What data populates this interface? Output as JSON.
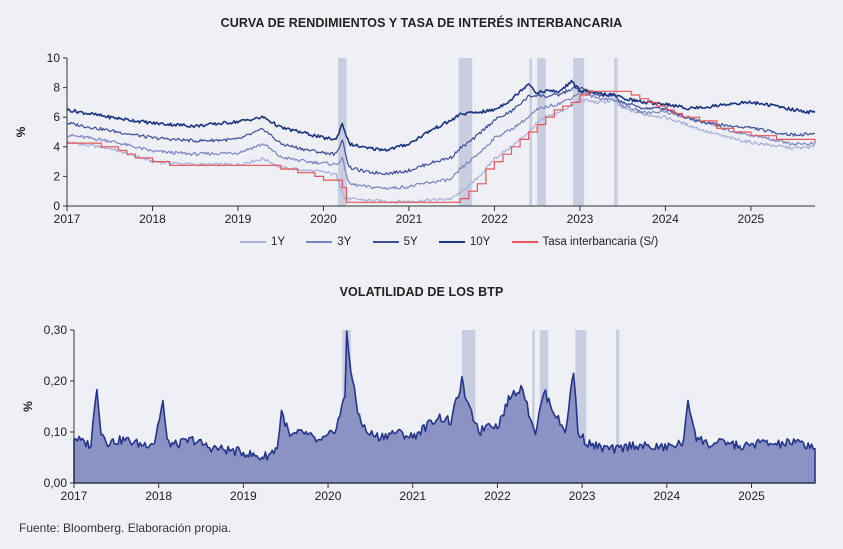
{
  "source": "Fuente: Bloomberg. Elaboración propia.",
  "colors": {
    "band": "#c9cde0",
    "y1": "#a9aed8",
    "y3": "#7b84bf",
    "y5": "#3d4f9c",
    "y10": "#1c3580",
    "rate": "#e8555a",
    "vol_line": "#24358a",
    "vol_fill": "#8a93c4",
    "axis": "#333333"
  },
  "chart_data": [
    {
      "type": "line",
      "title": "CURVA DE RENDIMIENTOS Y TASA DE INTERÉS INTERBANCARIA",
      "ylabel": "%",
      "xlim": [
        2017.0,
        2025.75
      ],
      "ylim": [
        0,
        10
      ],
      "y_ticks": [
        "0",
        "2",
        "4",
        "6",
        "8",
        "10"
      ],
      "y_tick_values": [
        0,
        2,
        4,
        6,
        8,
        10
      ],
      "x_ticks": [
        "2017",
        "2018",
        "2019",
        "2020",
        "2021",
        "2022",
        "2023",
        "2024",
        "2025"
      ],
      "x_tick_values": [
        2017,
        2018,
        2019,
        2020,
        2021,
        2022,
        2023,
        2024,
        2025
      ],
      "shaded_periods": [
        [
          2020.17,
          2020.27
        ],
        [
          2021.58,
          2021.74
        ],
        [
          2022.41,
          2022.44
        ],
        [
          2022.5,
          2022.6
        ],
        [
          2022.92,
          2023.05
        ],
        [
          2023.4,
          2023.44
        ]
      ],
      "series": [
        {
          "name": "1Y",
          "color_key": "y1",
          "x": [
            2017.0,
            2017.5,
            2018.0,
            2018.5,
            2019.0,
            2019.3,
            2019.5,
            2019.8,
            2020.0,
            2020.15,
            2020.25,
            2020.5,
            2020.75,
            2021.0,
            2021.25,
            2021.5,
            2021.6,
            2021.75,
            2021.9,
            2022.0,
            2022.2,
            2022.4,
            2022.5,
            2022.6,
            2022.75,
            2022.9,
            2023.0,
            2023.2,
            2023.4,
            2023.5,
            2023.75,
            2024.0,
            2024.25,
            2024.5,
            2024.75,
            2025.0,
            2025.25,
            2025.5,
            2025.75
          ],
          "y": [
            4.3,
            3.9,
            3.0,
            2.8,
            2.8,
            3.2,
            2.6,
            2.4,
            2.3,
            2.1,
            0.5,
            0.4,
            0.3,
            0.3,
            0.4,
            0.5,
            0.9,
            1.6,
            2.5,
            3.2,
            4.0,
            5.0,
            5.6,
            6.0,
            6.3,
            6.8,
            7.2,
            7.0,
            7.1,
            6.6,
            6.2,
            6.0,
            5.5,
            5.0,
            4.6,
            4.3,
            4.1,
            3.9,
            4.0
          ]
        },
        {
          "name": "3Y",
          "color_key": "y3",
          "x": [
            2017.0,
            2017.5,
            2018.0,
            2018.5,
            2019.0,
            2019.3,
            2019.5,
            2019.8,
            2020.0,
            2020.15,
            2020.22,
            2020.3,
            2020.5,
            2020.75,
            2021.0,
            2021.25,
            2021.5,
            2021.6,
            2021.75,
            2021.9,
            2022.0,
            2022.2,
            2022.4,
            2022.5,
            2022.6,
            2022.75,
            2022.9,
            2023.0,
            2023.2,
            2023.4,
            2023.5,
            2023.75,
            2024.0,
            2024.25,
            2024.5,
            2024.75,
            2025.0,
            2025.25,
            2025.5,
            2025.75
          ],
          "y": [
            4.8,
            4.4,
            3.7,
            3.5,
            3.6,
            4.2,
            3.3,
            3.0,
            2.9,
            2.8,
            3.2,
            1.5,
            1.3,
            1.2,
            1.3,
            1.6,
            1.8,
            2.5,
            3.2,
            4.0,
            4.6,
            5.2,
            6.0,
            6.5,
            6.7,
            6.9,
            7.3,
            7.7,
            7.3,
            7.2,
            6.8,
            6.3,
            6.4,
            5.9,
            5.6,
            5.1,
            4.8,
            4.5,
            4.2,
            4.2
          ]
        },
        {
          "name": "5Y",
          "color_key": "y5",
          "x": [
            2017.0,
            2017.5,
            2018.0,
            2018.5,
            2019.0,
            2019.3,
            2019.5,
            2019.8,
            2020.0,
            2020.15,
            2020.22,
            2020.3,
            2020.5,
            2020.75,
            2021.0,
            2021.25,
            2021.5,
            2021.6,
            2021.75,
            2021.9,
            2022.0,
            2022.2,
            2022.4,
            2022.5,
            2022.6,
            2022.75,
            2022.9,
            2023.0,
            2023.2,
            2023.4,
            2023.5,
            2023.75,
            2024.0,
            2024.25,
            2024.5,
            2024.75,
            2025.0,
            2025.25,
            2025.5,
            2025.75
          ],
          "y": [
            5.6,
            5.1,
            4.6,
            4.4,
            4.5,
            5.2,
            4.2,
            3.8,
            3.6,
            3.5,
            4.5,
            2.6,
            2.3,
            2.2,
            2.4,
            2.9,
            3.3,
            3.9,
            4.5,
            5.3,
            5.8,
            6.4,
            7.4,
            7.5,
            7.4,
            7.5,
            7.9,
            8.0,
            7.5,
            7.4,
            7.0,
            6.6,
            6.6,
            6.0,
            5.6,
            5.4,
            5.3,
            5.0,
            4.8,
            4.9
          ]
        },
        {
          "name": "10Y",
          "color_key": "y10",
          "x": [
            2017.0,
            2017.5,
            2018.0,
            2018.5,
            2019.0,
            2019.3,
            2019.5,
            2019.8,
            2020.0,
            2020.15,
            2020.22,
            2020.3,
            2020.5,
            2020.75,
            2021.0,
            2021.25,
            2021.5,
            2021.6,
            2021.75,
            2021.9,
            2022.0,
            2022.2,
            2022.4,
            2022.5,
            2022.6,
            2022.75,
            2022.9,
            2023.0,
            2023.2,
            2023.4,
            2023.5,
            2023.75,
            2024.0,
            2024.25,
            2024.5,
            2024.75,
            2025.0,
            2025.25,
            2025.5,
            2025.75
          ],
          "y": [
            6.5,
            6.0,
            5.6,
            5.4,
            5.7,
            6.0,
            5.3,
            4.9,
            4.6,
            4.5,
            5.6,
            4.2,
            3.9,
            3.8,
            4.2,
            5.1,
            5.8,
            6.2,
            6.3,
            6.4,
            6.5,
            7.2,
            8.3,
            7.6,
            7.8,
            7.7,
            8.4,
            7.8,
            7.6,
            7.5,
            7.3,
            7.0,
            6.9,
            6.6,
            6.7,
            6.9,
            7.0,
            6.8,
            6.5,
            6.3
          ]
        },
        {
          "name": "Tasa interbancaria (S/)",
          "color_key": "rate",
          "step": true,
          "x": [
            2017.0,
            2017.4,
            2017.6,
            2017.7,
            2017.8,
            2018.0,
            2018.2,
            2019.5,
            2019.7,
            2019.9,
            2020.0,
            2020.22,
            2020.27,
            2021.6,
            2021.7,
            2021.8,
            2021.9,
            2022.0,
            2022.1,
            2022.2,
            2022.3,
            2022.4,
            2022.5,
            2022.6,
            2022.7,
            2022.8,
            2022.9,
            2023.0,
            2023.1,
            2023.6,
            2023.7,
            2023.8,
            2023.9,
            2024.0,
            2024.1,
            2024.2,
            2024.4,
            2024.6,
            2024.8,
            2025.0,
            2025.3,
            2025.75
          ],
          "y": [
            4.25,
            4.0,
            3.75,
            3.5,
            3.25,
            3.0,
            2.75,
            2.5,
            2.25,
            2.0,
            1.75,
            1.25,
            0.25,
            0.5,
            1.0,
            1.5,
            2.5,
            3.0,
            3.5,
            4.0,
            4.5,
            5.0,
            5.5,
            6.0,
            6.5,
            6.75,
            7.0,
            7.5,
            7.75,
            7.5,
            7.25,
            7.0,
            6.75,
            6.5,
            6.25,
            6.0,
            5.75,
            5.25,
            5.0,
            4.75,
            4.5,
            4.25
          ]
        }
      ]
    },
    {
      "type": "area",
      "title": "VOLATILIDAD DE LOS BTP",
      "ylabel": "%",
      "xlim": [
        2017.0,
        2025.75
      ],
      "ylim": [
        0,
        0.3
      ],
      "y_ticks": [
        "0,00",
        "0,10",
        "0,20",
        "0,30"
      ],
      "y_tick_values": [
        0,
        0.1,
        0.2,
        0.3
      ],
      "x_ticks": [
        "2017",
        "2018",
        "2019",
        "2020",
        "2021",
        "2022",
        "2023",
        "2024",
        "2025"
      ],
      "x_tick_values": [
        2017,
        2018,
        2019,
        2020,
        2021,
        2022,
        2023,
        2024,
        2025
      ],
      "shaded_periods": [
        [
          2020.17,
          2020.27
        ],
        [
          2021.58,
          2021.74
        ],
        [
          2022.41,
          2022.44
        ],
        [
          2022.5,
          2022.6
        ],
        [
          2022.92,
          2023.05
        ],
        [
          2023.4,
          2023.44
        ]
      ],
      "series": [
        {
          "name": "Volatilidad",
          "x": [
            2017.0,
            2017.1,
            2017.2,
            2017.27,
            2017.32,
            2017.4,
            2017.6,
            2017.8,
            2017.95,
            2018.05,
            2018.1,
            2018.2,
            2018.4,
            2018.6,
            2018.8,
            2019.0,
            2019.2,
            2019.3,
            2019.4,
            2019.45,
            2019.55,
            2019.7,
            2019.9,
            2020.0,
            2020.1,
            2020.2,
            2020.22,
            2020.27,
            2020.35,
            2020.45,
            2020.6,
            2020.8,
            2021.0,
            2021.15,
            2021.3,
            2021.45,
            2021.58,
            2021.65,
            2021.8,
            2021.9,
            2022.0,
            2022.15,
            2022.3,
            2022.35,
            2022.45,
            2022.55,
            2022.7,
            2022.8,
            2022.9,
            2022.95,
            2023.05,
            2023.2,
            2023.4,
            2023.6,
            2023.8,
            2024.0,
            2024.2,
            2024.25,
            2024.35,
            2024.5,
            2024.7,
            2024.9,
            2025.1,
            2025.3,
            2025.5,
            2025.65,
            2025.75
          ],
          "y": [
            0.09,
            0.08,
            0.075,
            0.19,
            0.1,
            0.08,
            0.085,
            0.075,
            0.08,
            0.16,
            0.08,
            0.075,
            0.085,
            0.07,
            0.065,
            0.06,
            0.05,
            0.055,
            0.07,
            0.14,
            0.09,
            0.1,
            0.08,
            0.09,
            0.11,
            0.17,
            0.3,
            0.22,
            0.14,
            0.1,
            0.09,
            0.1,
            0.09,
            0.11,
            0.13,
            0.12,
            0.2,
            0.15,
            0.1,
            0.12,
            0.11,
            0.17,
            0.19,
            0.15,
            0.1,
            0.18,
            0.13,
            0.1,
            0.22,
            0.1,
            0.08,
            0.07,
            0.065,
            0.075,
            0.07,
            0.07,
            0.08,
            0.16,
            0.09,
            0.075,
            0.08,
            0.07,
            0.08,
            0.075,
            0.08,
            0.075,
            0.07
          ]
        }
      ]
    }
  ]
}
